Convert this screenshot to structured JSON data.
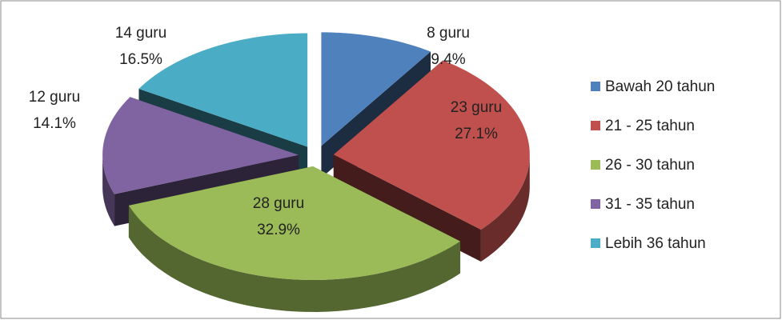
{
  "chart_data": {
    "type": "pie",
    "view": "3d-exploded",
    "categories": [
      "Bawah 20 tahun",
      "21 - 25 tahun",
      "26 - 30 tahun",
      "31 - 35 tahun",
      "Lebih 36 tahun"
    ],
    "values": [
      8,
      23,
      28,
      12,
      14
    ],
    "value_labels": [
      "8 guru",
      "23 guru",
      "28 guru",
      "12 guru",
      "14 guru"
    ],
    "percentages": [
      9.4,
      27.1,
      32.9,
      14.1,
      16.5
    ],
    "percentage_labels": [
      "9.4%",
      "27.1%",
      "32.9%",
      "14.1%",
      "16.5%"
    ],
    "colors": [
      "#4f81bd",
      "#c0504d",
      "#9bbb59",
      "#8064a2",
      "#4bacc6"
    ],
    "legend": "right"
  }
}
